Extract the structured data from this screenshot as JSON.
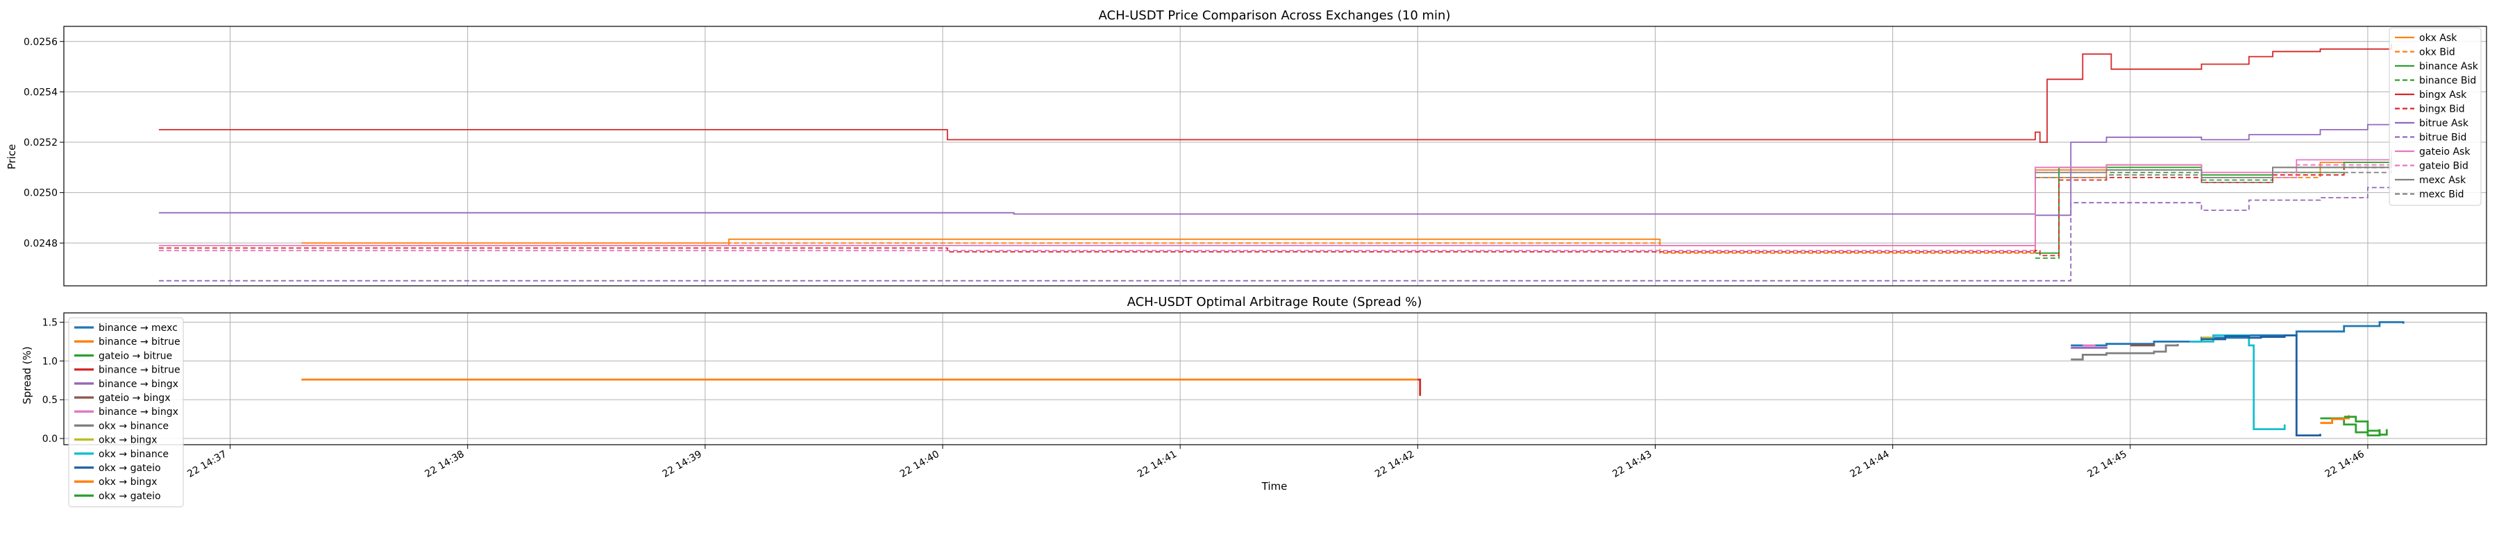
{
  "chart_data": [
    {
      "type": "line",
      "title": "ACH-USDT Price Comparison Across Exchanges (10 min)",
      "xlabel": "",
      "ylabel": "Price",
      "x_unit": "minute of 22 14:xx",
      "xlim": [
        36.0,
        46.2
      ],
      "ylim": [
        0.02463,
        0.02566
      ],
      "yticks": [
        0.0248,
        0.025,
        0.0252,
        0.0254,
        0.0256
      ],
      "ytick_labels": [
        "0.0248",
        "0.0250",
        "0.0252",
        "0.0254",
        "0.0256"
      ],
      "grid": true,
      "legend": "top-right",
      "series": [
        {
          "name": "okx Ask",
          "color": "#ff7f0e",
          "dash": false,
          "points": [
            [
              37.0,
              24.8
            ],
            [
              38.0,
              24.8
            ],
            [
              38.8,
              24.815
            ],
            [
              39.8,
              24.815
            ],
            [
              40.8,
              24.815
            ],
            [
              41.8,
              24.815
            ],
            [
              42.7,
              24.815
            ],
            [
              42.72,
              24.79
            ],
            [
              44.3,
              25.09
            ],
            [
              44.6,
              25.11
            ],
            [
              45.0,
              25.08
            ],
            [
              45.5,
              25.12
            ],
            [
              45.8,
              25.15
            ]
          ]
        },
        {
          "name": "okx Bid",
          "color": "#ff7f0e",
          "dash": true,
          "points": [
            [
              37.0,
              24.79
            ],
            [
              38.0,
              24.79
            ],
            [
              38.8,
              24.8
            ],
            [
              39.8,
              24.8
            ],
            [
              40.8,
              24.8
            ],
            [
              41.8,
              24.8
            ],
            [
              42.7,
              24.8
            ],
            [
              42.72,
              24.76
            ],
            [
              44.3,
              25.06
            ],
            [
              44.6,
              25.09
            ],
            [
              45.0,
              25.06
            ],
            [
              45.5,
              25.1
            ],
            [
              45.8,
              25.13
            ]
          ]
        },
        {
          "name": "binance Ask",
          "color": "#2ca02c",
          "dash": false,
          "points": [
            [
              44.3,
              24.76
            ],
            [
              44.4,
              25.1
            ],
            [
              44.7,
              25.1
            ],
            [
              45.0,
              25.07
            ],
            [
              45.3,
              25.1
            ],
            [
              45.6,
              25.12
            ],
            [
              45.8,
              25.16
            ]
          ]
        },
        {
          "name": "binance Bid",
          "color": "#2ca02c",
          "dash": true,
          "points": [
            [
              44.3,
              24.74
            ],
            [
              44.4,
              25.08
            ],
            [
              44.7,
              25.08
            ],
            [
              45.0,
              25.05
            ],
            [
              45.3,
              25.08
            ],
            [
              45.6,
              25.1
            ],
            [
              45.8,
              25.14
            ]
          ]
        },
        {
          "name": "bingx Ask",
          "color": "#d62728",
          "dash": false,
          "points": [
            [
              36.4,
              25.25
            ],
            [
              39.7,
              25.25
            ],
            [
              39.72,
              25.21
            ],
            [
              44.3,
              25.24
            ],
            [
              44.32,
              25.2
            ],
            [
              44.35,
              25.45
            ],
            [
              44.5,
              25.55
            ],
            [
              44.6,
              25.55
            ],
            [
              44.62,
              25.49
            ],
            [
              44.9,
              25.49
            ],
            [
              45.0,
              25.51
            ],
            [
              45.2,
              25.54
            ],
            [
              45.3,
              25.56
            ],
            [
              45.5,
              25.57
            ],
            [
              45.8,
              25.59
            ]
          ]
        },
        {
          "name": "bingx Bid",
          "color": "#d62728",
          "dash": true,
          "points": [
            [
              36.4,
              24.78
            ],
            [
              39.7,
              24.78
            ],
            [
              39.72,
              24.765
            ],
            [
              44.3,
              24.77
            ],
            [
              44.32,
              24.75
            ],
            [
              44.4,
              25.05
            ],
            [
              44.6,
              25.06
            ],
            [
              45.0,
              25.04
            ],
            [
              45.3,
              25.07
            ],
            [
              45.6,
              25.1
            ],
            [
              45.8,
              25.13
            ]
          ]
        },
        {
          "name": "bitrue Ask",
          "color": "#9467bd",
          "dash": false,
          "points": [
            [
              36.4,
              24.92
            ],
            [
              40.0,
              24.915
            ],
            [
              44.3,
              24.91
            ],
            [
              44.45,
              25.2
            ],
            [
              44.6,
              25.22
            ],
            [
              45.0,
              25.21
            ],
            [
              45.2,
              25.23
            ],
            [
              45.5,
              25.25
            ],
            [
              45.7,
              25.27
            ],
            [
              45.8,
              25.27
            ]
          ]
        },
        {
          "name": "bitrue Bid",
          "color": "#9467bd",
          "dash": true,
          "points": [
            [
              36.4,
              24.65
            ],
            [
              44.3,
              24.65
            ],
            [
              44.45,
              24.96
            ],
            [
              44.8,
              24.96
            ],
            [
              45.0,
              24.93
            ],
            [
              45.2,
              24.97
            ],
            [
              45.5,
              24.98
            ],
            [
              45.7,
              25.02
            ],
            [
              45.8,
              25.01
            ]
          ]
        },
        {
          "name": "gateio Ask",
          "color": "#e377c2",
          "dash": false,
          "points": [
            [
              36.4,
              24.79
            ],
            [
              41.8,
              24.79
            ],
            [
              44.3,
              25.1
            ],
            [
              44.6,
              25.11
            ],
            [
              45.0,
              25.08
            ],
            [
              45.4,
              25.13
            ],
            [
              45.8,
              25.17
            ]
          ]
        },
        {
          "name": "gateio Bid",
          "color": "#e377c2",
          "dash": true,
          "points": [
            [
              36.4,
              24.77
            ],
            [
              41.8,
              24.77
            ],
            [
              44.3,
              25.08
            ],
            [
              44.6,
              25.09
            ],
            [
              45.0,
              25.06
            ],
            [
              45.4,
              25.11
            ],
            [
              45.8,
              25.15
            ]
          ]
        },
        {
          "name": "mexc Ask",
          "color": "#7f7f7f",
          "dash": false,
          "points": [
            [
              44.3,
              25.08
            ],
            [
              44.6,
              25.09
            ],
            [
              45.0,
              25.06
            ],
            [
              45.3,
              25.1
            ],
            [
              45.8,
              25.14
            ]
          ]
        },
        {
          "name": "mexc Bid",
          "color": "#7f7f7f",
          "dash": true,
          "points": [
            [
              44.3,
              25.06
            ],
            [
              44.6,
              25.07
            ],
            [
              45.0,
              25.04
            ],
            [
              45.3,
              25.08
            ],
            [
              45.8,
              25.12
            ]
          ]
        }
      ]
    },
    {
      "type": "line",
      "title": "ACH-USDT Optimal Arbitrage Route (Spread %)",
      "xlabel": "Time",
      "ylabel": "Spread (%)",
      "x_unit": "minute of 22 14:xx",
      "xlim": [
        36.0,
        46.2
      ],
      "ylim": [
        -0.08,
        1.62
      ],
      "yticks": [
        0.0,
        0.5,
        1.0,
        1.5
      ],
      "ytick_labels": [
        "0.0",
        "0.5",
        "1.0",
        "1.5"
      ],
      "xticks": [
        36.7,
        37.7,
        38.7,
        39.7,
        40.7,
        41.7,
        42.7,
        43.7,
        44.7,
        45.7
      ],
      "xtick_labels": [
        "22 14:37",
        "22 14:38",
        "22 14:39",
        "22 14:40",
        "22 14:41",
        "22 14:42",
        "22 14:43",
        "22 14:44",
        "22 14:45",
        "22 14:46"
      ],
      "grid": true,
      "legend": "bottom-left",
      "series": [
        {
          "name": "binance → mexc",
          "color": "#1f77b4",
          "points": [
            [
              44.45,
              1.2
            ],
            [
              44.6,
              1.22
            ],
            [
              44.8,
              1.25
            ],
            [
              45.0,
              1.3
            ],
            [
              45.2,
              1.33
            ],
            [
              45.4,
              1.38
            ],
            [
              45.6,
              1.45
            ],
            [
              45.75,
              1.5
            ],
            [
              45.85,
              1.48
            ]
          ]
        },
        {
          "name": "binance → bitrue",
          "color": "#ff7f0e",
          "points": [
            [
              37.0,
              0.76
            ],
            [
              40.7,
              0.76
            ],
            [
              41.7,
              0.76
            ]
          ]
        },
        {
          "name": "gateio → bitrue",
          "color": "#2ca02c",
          "points": [
            [
              45.5,
              0.26
            ],
            [
              45.6,
              0.18
            ],
            [
              45.65,
              0.08
            ],
            [
              45.7,
              0.04
            ],
            [
              45.75,
              0.12
            ]
          ]
        },
        {
          "name": "binance → bitrue",
          "color": "#d62728",
          "points": [
            [
              41.7,
              0.76
            ],
            [
              41.71,
              0.55
            ]
          ]
        },
        {
          "name": "binance → bingx",
          "color": "#9467bd",
          "points": [
            [
              44.45,
              1.17
            ],
            [
              44.6,
              1.18
            ]
          ]
        },
        {
          "name": "gateio → bingx",
          "color": "#8c564b",
          "points": [
            [
              44.7,
              1.2
            ],
            [
              44.8,
              1.22
            ]
          ]
        },
        {
          "name": "binance → bingx",
          "color": "#e377c2",
          "points": [
            [
              44.5,
              1.2
            ],
            [
              44.55,
              1.21
            ]
          ]
        },
        {
          "name": "okx → binance",
          "color": "#7f7f7f",
          "points": [
            [
              44.45,
              1.02
            ],
            [
              44.5,
              1.08
            ],
            [
              44.6,
              1.1
            ],
            [
              44.8,
              1.12
            ],
            [
              44.85,
              1.2
            ],
            [
              44.9,
              1.22
            ]
          ]
        },
        {
          "name": "okx → bingx",
          "color": "#bcbd22",
          "points": [
            [
              45.0,
              1.3
            ],
            [
              45.05,
              1.33
            ]
          ]
        },
        {
          "name": "okx → binance",
          "color": "#17becf",
          "points": [
            [
              44.95,
              1.25
            ],
            [
              45.05,
              1.33
            ],
            [
              45.15,
              1.33
            ],
            [
              45.2,
              1.2
            ],
            [
              45.22,
              0.12
            ],
            [
              45.3,
              0.12
            ],
            [
              45.35,
              0.18
            ]
          ]
        },
        {
          "name": "okx → gateio",
          "color": "#1f5f9f",
          "points": [
            [
              45.0,
              1.28
            ],
            [
              45.1,
              1.32
            ],
            [
              45.2,
              1.3
            ],
            [
              45.25,
              1.31
            ],
            [
              45.35,
              1.33
            ],
            [
              45.4,
              0.04
            ],
            [
              45.5,
              0.06
            ]
          ]
        },
        {
          "name": "okx → bingx",
          "color": "#ff7f0e",
          "points": [
            [
              45.5,
              0.2
            ],
            [
              45.55,
              0.25
            ],
            [
              45.6,
              0.26
            ],
            [
              45.62,
              0.3
            ]
          ]
        },
        {
          "name": "okx → gateio",
          "color": "#2ca02c",
          "points": [
            [
              45.6,
              0.28
            ],
            [
              45.65,
              0.22
            ],
            [
              45.7,
              0.1
            ],
            [
              45.75,
              0.05
            ],
            [
              45.78,
              0.12
            ]
          ]
        }
      ]
    }
  ]
}
